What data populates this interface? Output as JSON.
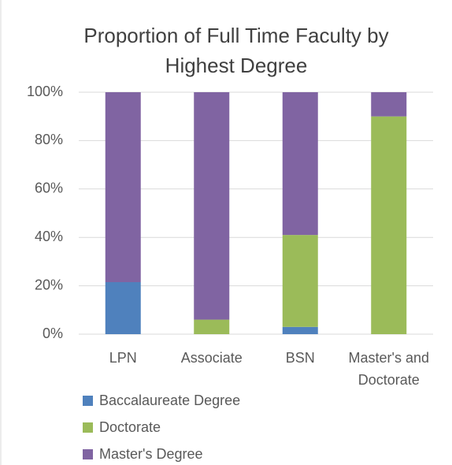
{
  "chart_data": {
    "type": "stacked_bar",
    "title": "Proportion of Full Time Faculty by Highest Degree",
    "categories": [
      "LPN",
      "Associate",
      "BSN",
      "Master's and Doctorate"
    ],
    "series": [
      {
        "name": "Baccalaureate Degree",
        "color": "#4f81bd",
        "values": [
          21.5,
          0,
          3,
          0
        ]
      },
      {
        "name": "Doctorate",
        "color": "#9bbb59",
        "values": [
          0,
          6,
          38,
          90
        ]
      },
      {
        "name": "Master's Degree",
        "color": "#8064a2",
        "values": [
          78.5,
          94,
          59,
          10
        ]
      }
    ],
    "ylim": [
      0,
      100
    ],
    "yticks": [
      {
        "value": 0,
        "label": "0%"
      },
      {
        "value": 20,
        "label": "20%"
      },
      {
        "value": 40,
        "label": "40%"
      },
      {
        "value": 60,
        "label": "60%"
      },
      {
        "value": 80,
        "label": "80%"
      },
      {
        "value": 100,
        "label": "100%"
      }
    ],
    "grid": true,
    "legend": "bottom"
  }
}
